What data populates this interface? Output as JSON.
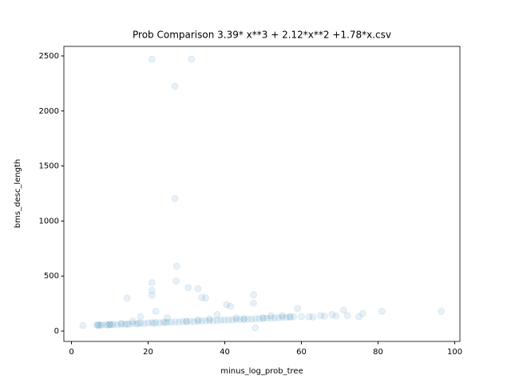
{
  "chart_data": {
    "type": "scatter",
    "title": "Prob Comparison 3.39* x**3 + 2.12*x**2 +1.78*x.csv",
    "x_label": "minus_log_prob_tree",
    "y_label": "bms_desc_length",
    "color": "#1f77b4",
    "alpha": 0.1,
    "xlim": [
      -1.98,
      101.35
    ],
    "ylim": [
      -94,
      2587
    ],
    "xticks": [
      0,
      20,
      40,
      60,
      80,
      100
    ],
    "yticks": [
      0,
      500,
      1000,
      1500,
      2000,
      2500
    ],
    "grid": false,
    "x": [
      21,
      31.3,
      27,
      27,
      27.5,
      27.3,
      30.5,
      33,
      21,
      21,
      21,
      14.5,
      34,
      35,
      40.5,
      41.5,
      47.5,
      47.5,
      48,
      59,
      81,
      96.5,
      71,
      76,
      75,
      68,
      65,
      62,
      57,
      55,
      52,
      50,
      45,
      43,
      38,
      36,
      33,
      30,
      25,
      22,
      18,
      16,
      13,
      10,
      7,
      3,
      6.5,
      7,
      7.5,
      8,
      9,
      9.5,
      10,
      10.5,
      11,
      12,
      13,
      14,
      14.5,
      15,
      16,
      17,
      17.5,
      18,
      19,
      20,
      21,
      21.5,
      22,
      23,
      24,
      24.5,
      25,
      26,
      27,
      28,
      29,
      30,
      31,
      32,
      33,
      34,
      35,
      36,
      37,
      38,
      39,
      40,
      41,
      42,
      43,
      44,
      45,
      46,
      47,
      48,
      49,
      50,
      51,
      52,
      53,
      54,
      55,
      56,
      57,
      58,
      60,
      63,
      66,
      69,
      72
    ],
    "values": [
      2470,
      2470,
      2225,
      1205,
      590,
      455,
      395,
      385,
      440,
      370,
      325,
      300,
      305,
      300,
      240,
      225,
      330,
      255,
      30,
      205,
      180,
      180,
      190,
      160,
      130,
      150,
      140,
      130,
      130,
      140,
      140,
      120,
      110,
      120,
      150,
      110,
      100,
      90,
      120,
      180,
      130,
      90,
      70,
      60,
      55,
      50,
      54,
      55,
      52,
      56,
      58,
      55,
      60,
      57,
      62,
      58,
      63,
      60,
      66,
      62,
      68,
      65,
      70,
      72,
      68,
      74,
      76,
      70,
      78,
      75,
      80,
      77,
      82,
      80,
      84,
      81,
      86,
      85,
      88,
      86,
      90,
      92,
      94,
      95,
      93,
      97,
      99,
      100,
      102,
      101,
      104,
      106,
      107,
      110,
      108,
      112,
      114,
      116,
      118,
      117,
      120,
      122,
      124,
      125,
      127,
      130,
      132,
      128,
      135,
      138,
      140
    ]
  }
}
